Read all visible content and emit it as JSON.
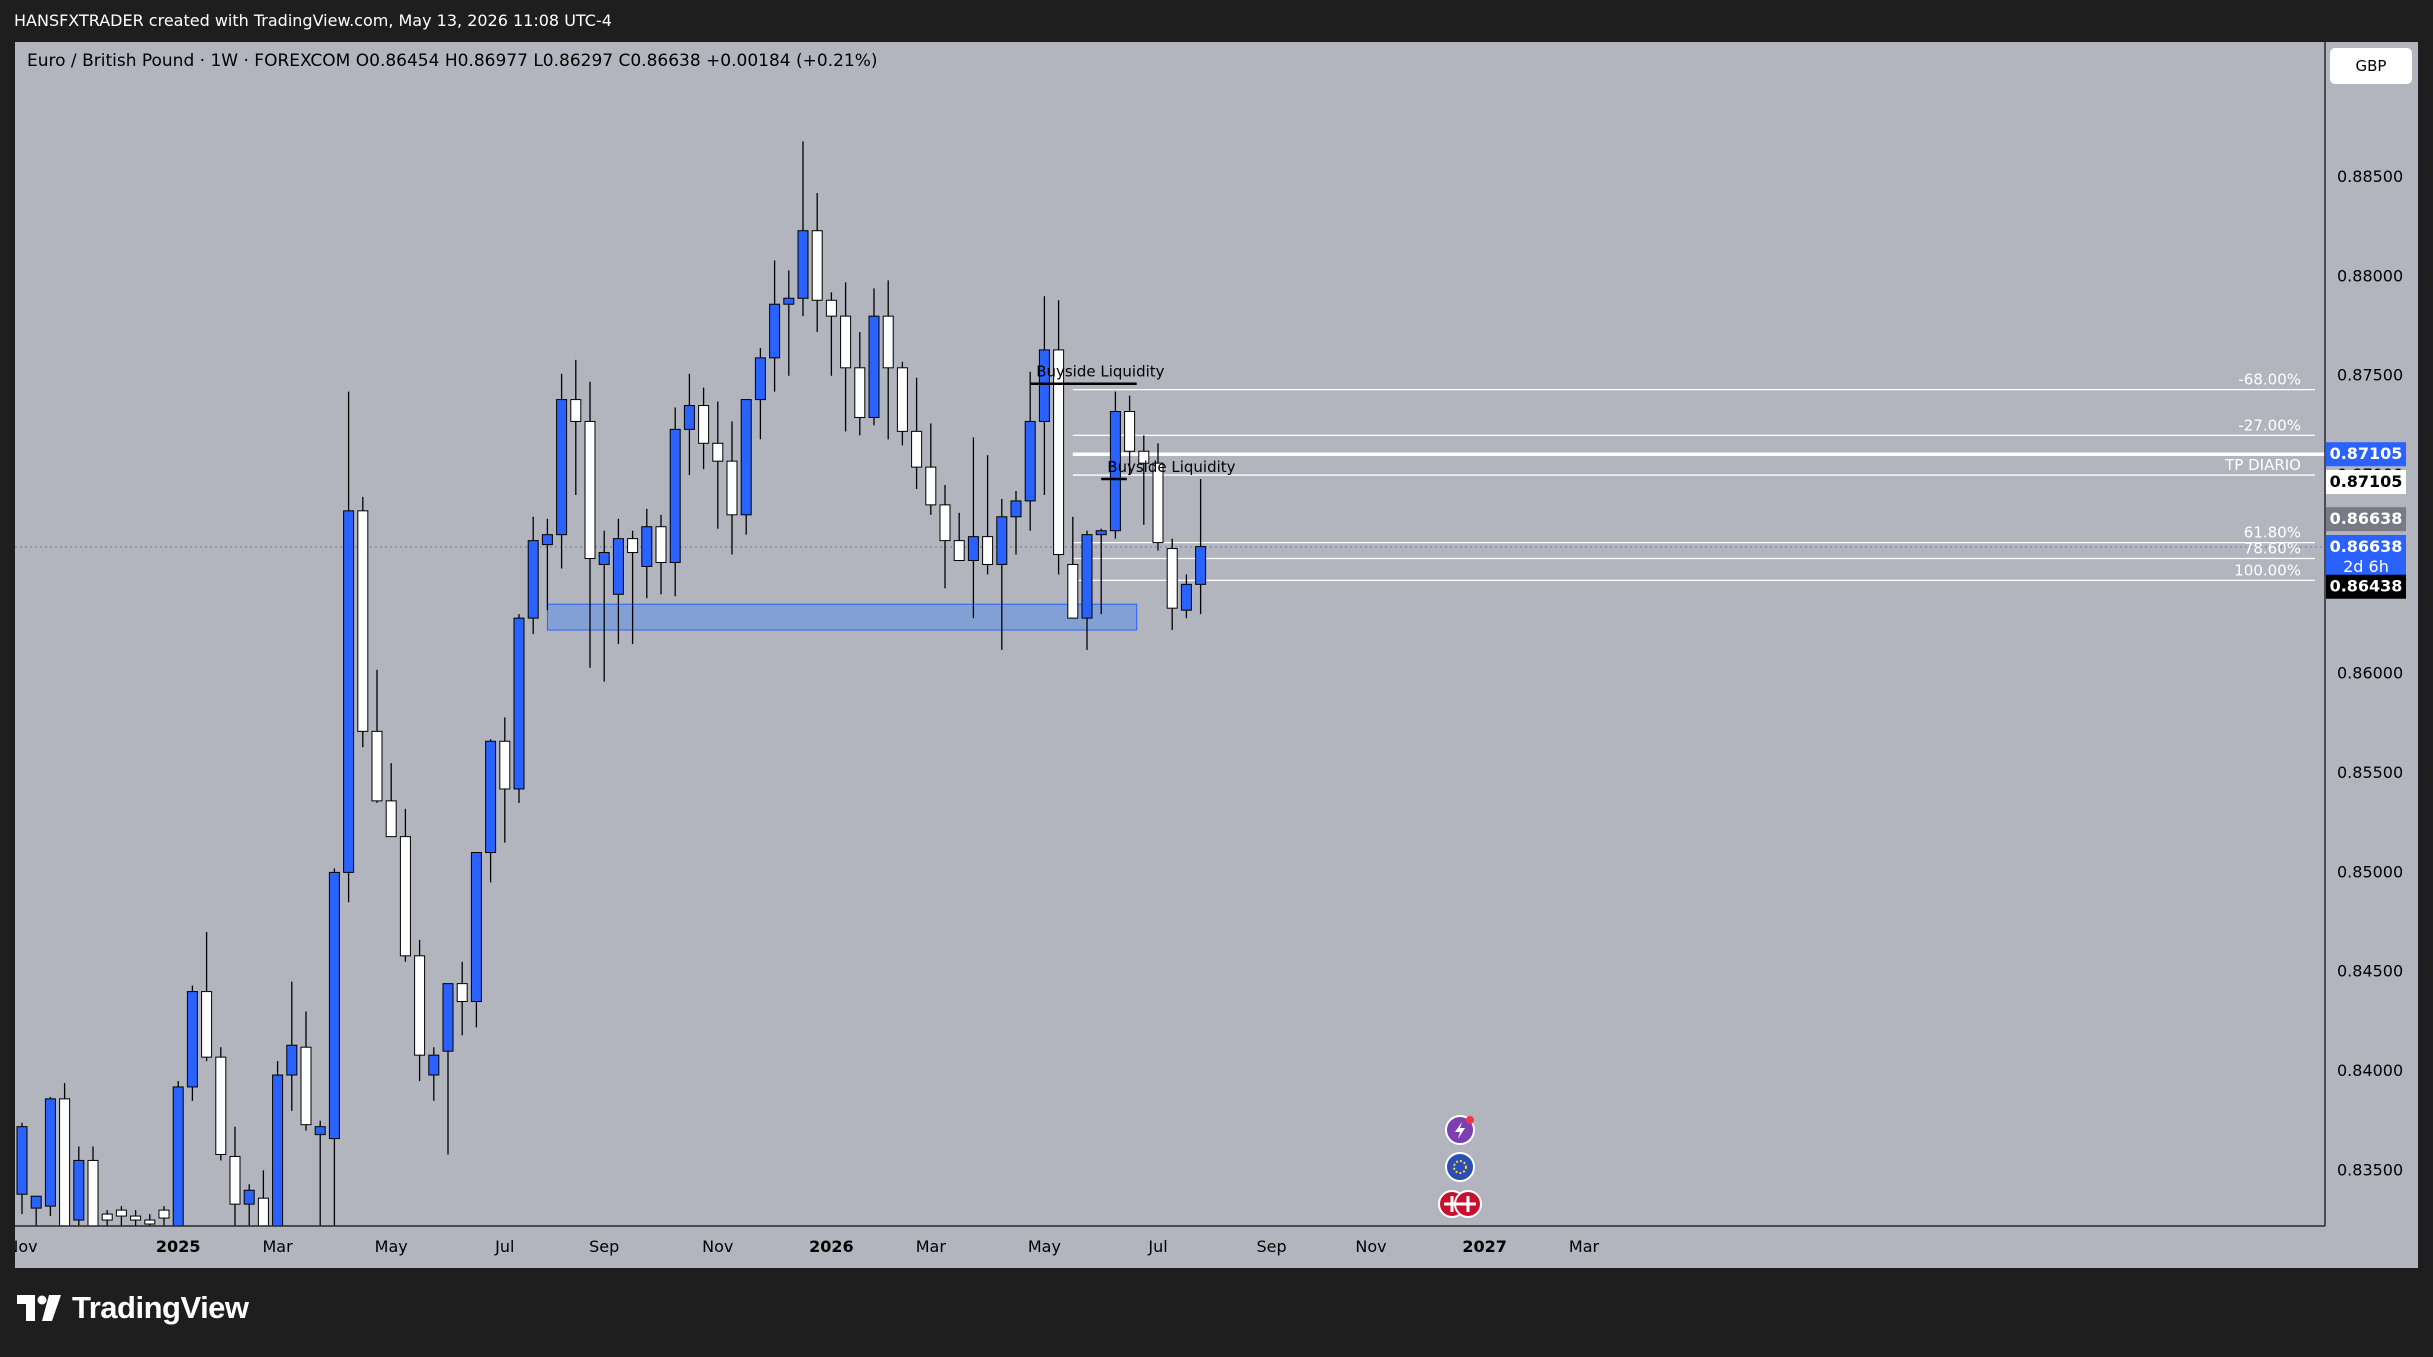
{
  "header": {
    "credit": "HANSFXTRADER created with TradingView.com, May 13, 2026 11:08 UTC-4"
  },
  "symbol_info": "Euro / British Pound · 1W · FOREXCOM  O0.86454  H0.86977  L0.86297  C0.86638  +0.00184 (+0.21%)",
  "currency_badge": "GBP",
  "footer": {
    "logo_text": "TradingView"
  },
  "colors": {
    "background": "#b2b5be",
    "bull_candle": "#2962ff",
    "bear_candle": "#ffffff",
    "zone": "#5b8ee6",
    "price_tag": "#2962ff",
    "frame": "#1e1e1f"
  },
  "chart_data": {
    "type": "candlestick",
    "symbol": "EURGBP",
    "timeframe": "1W",
    "ylim": [
      0.8322,
      0.8918
    ],
    "y_ticks": [
      0.835,
      0.84,
      0.845,
      0.85,
      0.855,
      0.86,
      0.865,
      0.87,
      0.875,
      0.88,
      0.885,
      0.89
    ],
    "x_labels": [
      {
        "label": "Nov",
        "week": 0
      },
      {
        "label": "2025",
        "week": 11
      },
      {
        "label": "Mar",
        "week": 18
      },
      {
        "label": "May",
        "week": 26
      },
      {
        "label": "Jul",
        "week": 34
      },
      {
        "label": "Sep",
        "week": 41
      },
      {
        "label": "Nov",
        "week": 49
      },
      {
        "label": "2026",
        "week": 57
      },
      {
        "label": "Mar",
        "week": 64
      },
      {
        "label": "May",
        "week": 72
      },
      {
        "label": "Jul",
        "week": 80
      },
      {
        "label": "Sep",
        "week": 88
      },
      {
        "label": "Nov",
        "week": 95
      },
      {
        "label": "2027",
        "week": 103
      },
      {
        "label": "Mar",
        "week": 110
      }
    ],
    "candles": [
      {
        "o": 0.8338,
        "h": 0.8374,
        "l": 0.8328,
        "c": 0.8372
      },
      {
        "o": 0.8331,
        "h": 0.8337,
        "l": 0.8322,
        "c": 0.8337
      },
      {
        "o": 0.8332,
        "h": 0.8387,
        "l": 0.8327,
        "c": 0.8386
      },
      {
        "o": 0.8386,
        "h": 0.8394,
        "l": 0.8322,
        "c": 0.8322
      },
      {
        "o": 0.8325,
        "h": 0.8362,
        "l": 0.8322,
        "c": 0.8355
      },
      {
        "o": 0.8355,
        "h": 0.8362,
        "l": 0.8322,
        "c": 0.8322
      },
      {
        "o": 0.8328,
        "h": 0.833,
        "l": 0.8322,
        "c": 0.8325
      },
      {
        "o": 0.833,
        "h": 0.8332,
        "l": 0.8322,
        "c": 0.8327
      },
      {
        "o": 0.8327,
        "h": 0.833,
        "l": 0.8322,
        "c": 0.8325
      },
      {
        "o": 0.8325,
        "h": 0.8328,
        "l": 0.8322,
        "c": 0.8323
      },
      {
        "o": 0.833,
        "h": 0.8332,
        "l": 0.8322,
        "c": 0.8326
      },
      {
        "o": 0.8322,
        "h": 0.8395,
        "l": 0.8322,
        "c": 0.8392
      },
      {
        "o": 0.8392,
        "h": 0.8443,
        "l": 0.8385,
        "c": 0.844
      },
      {
        "o": 0.844,
        "h": 0.847,
        "l": 0.8405,
        "c": 0.8407
      },
      {
        "o": 0.8407,
        "h": 0.8412,
        "l": 0.8355,
        "c": 0.8358
      },
      {
        "o": 0.8357,
        "h": 0.8372,
        "l": 0.8322,
        "c": 0.8333
      },
      {
        "o": 0.8333,
        "h": 0.8343,
        "l": 0.8322,
        "c": 0.834
      },
      {
        "o": 0.8336,
        "h": 0.835,
        "l": 0.8322,
        "c": 0.8322
      },
      {
        "o": 0.8322,
        "h": 0.8405,
        "l": 0.8322,
        "c": 0.8398
      },
      {
        "o": 0.8398,
        "h": 0.8445,
        "l": 0.838,
        "c": 0.8413
      },
      {
        "o": 0.8412,
        "h": 0.843,
        "l": 0.837,
        "c": 0.8373
      },
      {
        "o": 0.8368,
        "h": 0.8375,
        "l": 0.8322,
        "c": 0.8372
      },
      {
        "o": 0.8366,
        "h": 0.8502,
        "l": 0.8322,
        "c": 0.85
      },
      {
        "o": 0.85,
        "h": 0.8742,
        "l": 0.8485,
        "c": 0.8682
      },
      {
        "o": 0.8682,
        "h": 0.8689,
        "l": 0.8563,
        "c": 0.8571
      },
      {
        "o": 0.8571,
        "h": 0.8602,
        "l": 0.8535,
        "c": 0.8536
      },
      {
        "o": 0.8536,
        "h": 0.8555,
        "l": 0.8518,
        "c": 0.8518
      },
      {
        "o": 0.8518,
        "h": 0.8532,
        "l": 0.8455,
        "c": 0.8458
      },
      {
        "o": 0.8458,
        "h": 0.8466,
        "l": 0.8395,
        "c": 0.8408
      },
      {
        "o": 0.8398,
        "h": 0.8412,
        "l": 0.8385,
        "c": 0.8408
      },
      {
        "o": 0.841,
        "h": 0.8442,
        "l": 0.8358,
        "c": 0.8444
      },
      {
        "o": 0.8444,
        "h": 0.8455,
        "l": 0.8418,
        "c": 0.8435
      },
      {
        "o": 0.8435,
        "h": 0.851,
        "l": 0.8422,
        "c": 0.851
      },
      {
        "o": 0.851,
        "h": 0.8567,
        "l": 0.8495,
        "c": 0.8566
      },
      {
        "o": 0.8566,
        "h": 0.8578,
        "l": 0.8515,
        "c": 0.8542
      },
      {
        "o": 0.8542,
        "h": 0.863,
        "l": 0.8535,
        "c": 0.8628
      },
      {
        "o": 0.8628,
        "h": 0.8679,
        "l": 0.862,
        "c": 0.8667
      },
      {
        "o": 0.8665,
        "h": 0.8678,
        "l": 0.8632,
        "c": 0.867
      },
      {
        "o": 0.867,
        "h": 0.8751,
        "l": 0.8653,
        "c": 0.8738
      },
      {
        "o": 0.8738,
        "h": 0.8758,
        "l": 0.869,
        "c": 0.8727
      },
      {
        "o": 0.8727,
        "h": 0.8747,
        "l": 0.8603,
        "c": 0.8658
      },
      {
        "o": 0.8655,
        "h": 0.8672,
        "l": 0.8596,
        "c": 0.8661
      },
      {
        "o": 0.864,
        "h": 0.8678,
        "l": 0.8615,
        "c": 0.8668
      },
      {
        "o": 0.8668,
        "h": 0.8672,
        "l": 0.8615,
        "c": 0.8661
      },
      {
        "o": 0.8654,
        "h": 0.8683,
        "l": 0.8638,
        "c": 0.8674
      },
      {
        "o": 0.8674,
        "h": 0.868,
        "l": 0.864,
        "c": 0.8656
      },
      {
        "o": 0.8656,
        "h": 0.8734,
        "l": 0.8639,
        "c": 0.8723
      },
      {
        "o": 0.8723,
        "h": 0.8751,
        "l": 0.87,
        "c": 0.8735
      },
      {
        "o": 0.8735,
        "h": 0.8744,
        "l": 0.8703,
        "c": 0.8716
      },
      {
        "o": 0.8716,
        "h": 0.8737,
        "l": 0.8673,
        "c": 0.8707
      },
      {
        "o": 0.8707,
        "h": 0.8727,
        "l": 0.866,
        "c": 0.868
      },
      {
        "o": 0.868,
        "h": 0.8738,
        "l": 0.867,
        "c": 0.8738
      },
      {
        "o": 0.8738,
        "h": 0.8764,
        "l": 0.8718,
        "c": 0.8759
      },
      {
        "o": 0.8759,
        "h": 0.8808,
        "l": 0.8742,
        "c": 0.8786
      },
      {
        "o": 0.8786,
        "h": 0.8803,
        "l": 0.875,
        "c": 0.8789
      },
      {
        "o": 0.8789,
        "h": 0.8868,
        "l": 0.878,
        "c": 0.8823
      },
      {
        "o": 0.8823,
        "h": 0.8842,
        "l": 0.8772,
        "c": 0.8788
      },
      {
        "o": 0.8788,
        "h": 0.8792,
        "l": 0.875,
        "c": 0.878
      },
      {
        "o": 0.878,
        "h": 0.8797,
        "l": 0.8722,
        "c": 0.8754
      },
      {
        "o": 0.8754,
        "h": 0.8772,
        "l": 0.872,
        "c": 0.8729
      },
      {
        "o": 0.8729,
        "h": 0.8794,
        "l": 0.8725,
        "c": 0.878
      },
      {
        "o": 0.878,
        "h": 0.8798,
        "l": 0.8718,
        "c": 0.8754
      },
      {
        "o": 0.8754,
        "h": 0.8757,
        "l": 0.8715,
        "c": 0.8722
      },
      {
        "o": 0.8722,
        "h": 0.8749,
        "l": 0.8693,
        "c": 0.8704
      },
      {
        "o": 0.8704,
        "h": 0.8726,
        "l": 0.868,
        "c": 0.8685
      },
      {
        "o": 0.8685,
        "h": 0.8695,
        "l": 0.8643,
        "c": 0.8667
      },
      {
        "o": 0.8667,
        "h": 0.8681,
        "l": 0.8658,
        "c": 0.8657
      },
      {
        "o": 0.8657,
        "h": 0.8719,
        "l": 0.8628,
        "c": 0.8669
      },
      {
        "o": 0.8669,
        "h": 0.871,
        "l": 0.865,
        "c": 0.8655
      },
      {
        "o": 0.8655,
        "h": 0.8688,
        "l": 0.8612,
        "c": 0.8679
      },
      {
        "o": 0.8679,
        "h": 0.8692,
        "l": 0.866,
        "c": 0.8687
      },
      {
        "o": 0.8687,
        "h": 0.8752,
        "l": 0.8672,
        "c": 0.8727
      },
      {
        "o": 0.8727,
        "h": 0.879,
        "l": 0.869,
        "c": 0.8763
      },
      {
        "o": 0.8763,
        "h": 0.8788,
        "l": 0.865,
        "c": 0.866
      },
      {
        "o": 0.8655,
        "h": 0.8679,
        "l": 0.863,
        "c": 0.8628
      },
      {
        "o": 0.8628,
        "h": 0.8672,
        "l": 0.8612,
        "c": 0.867
      },
      {
        "o": 0.867,
        "h": 0.8673,
        "l": 0.863,
        "c": 0.8672
      },
      {
        "o": 0.8672,
        "h": 0.8742,
        "l": 0.8668,
        "c": 0.8732
      },
      {
        "o": 0.8732,
        "h": 0.874,
        "l": 0.87,
        "c": 0.8712
      },
      {
        "o": 0.8712,
        "h": 0.872,
        "l": 0.8675,
        "c": 0.8706
      },
      {
        "o": 0.8706,
        "h": 0.8716,
        "l": 0.8662,
        "c": 0.8666
      },
      {
        "o": 0.8663,
        "h": 0.8668,
        "l": 0.8622,
        "c": 0.8633
      },
      {
        "o": 0.8632,
        "h": 0.865,
        "l": 0.8628,
        "c": 0.8645
      },
      {
        "o": 0.8645,
        "h": 0.8698,
        "l": 0.863,
        "c": 0.8664
      }
    ],
    "zones": [
      {
        "name": "demand-zone",
        "week_start": 37,
        "week_end": 78.5,
        "y_low": 0.8622,
        "y_high": 0.8635
      }
    ],
    "annotations": [
      {
        "text": "Buyside Liquidity",
        "week_start": 71,
        "week_end": 78.5,
        "y": 0.8746
      },
      {
        "text": "Buyside Liquidity",
        "week_start": 76,
        "week_end": 77.8,
        "y": 0.8698
      }
    ],
    "fib_levels": [
      {
        "label": "-68.00%",
        "y": 0.8743
      },
      {
        "label": "-27.00%",
        "y": 0.872
      },
      {
        "label": "TP DIARIO",
        "y": 0.87
      },
      {
        "label": "61.80%",
        "y": 0.8666
      },
      {
        "label": "78.60%",
        "y": 0.8658
      },
      {
        "label": "100.00%",
        "y": 0.8647
      }
    ],
    "fib_x_start_week": 74,
    "tp_line": {
      "y": 0.87105,
      "week_start": 74
    },
    "current_price_line": {
      "y": 0.86638
    },
    "price_tags": [
      {
        "text": "0.87105",
        "y": 0.87105,
        "style": "blue"
      },
      {
        "text": "0.87105",
        "y": 0.86965,
        "style": "white"
      },
      {
        "text": "0.86638",
        "y": 0.86778,
        "style": "gray"
      },
      {
        "text": "0.86638",
        "y": 0.86638,
        "style": "blue",
        "sub": "2d 6h"
      },
      {
        "text": "0.86438",
        "y": 0.86438,
        "style": "black"
      }
    ]
  }
}
